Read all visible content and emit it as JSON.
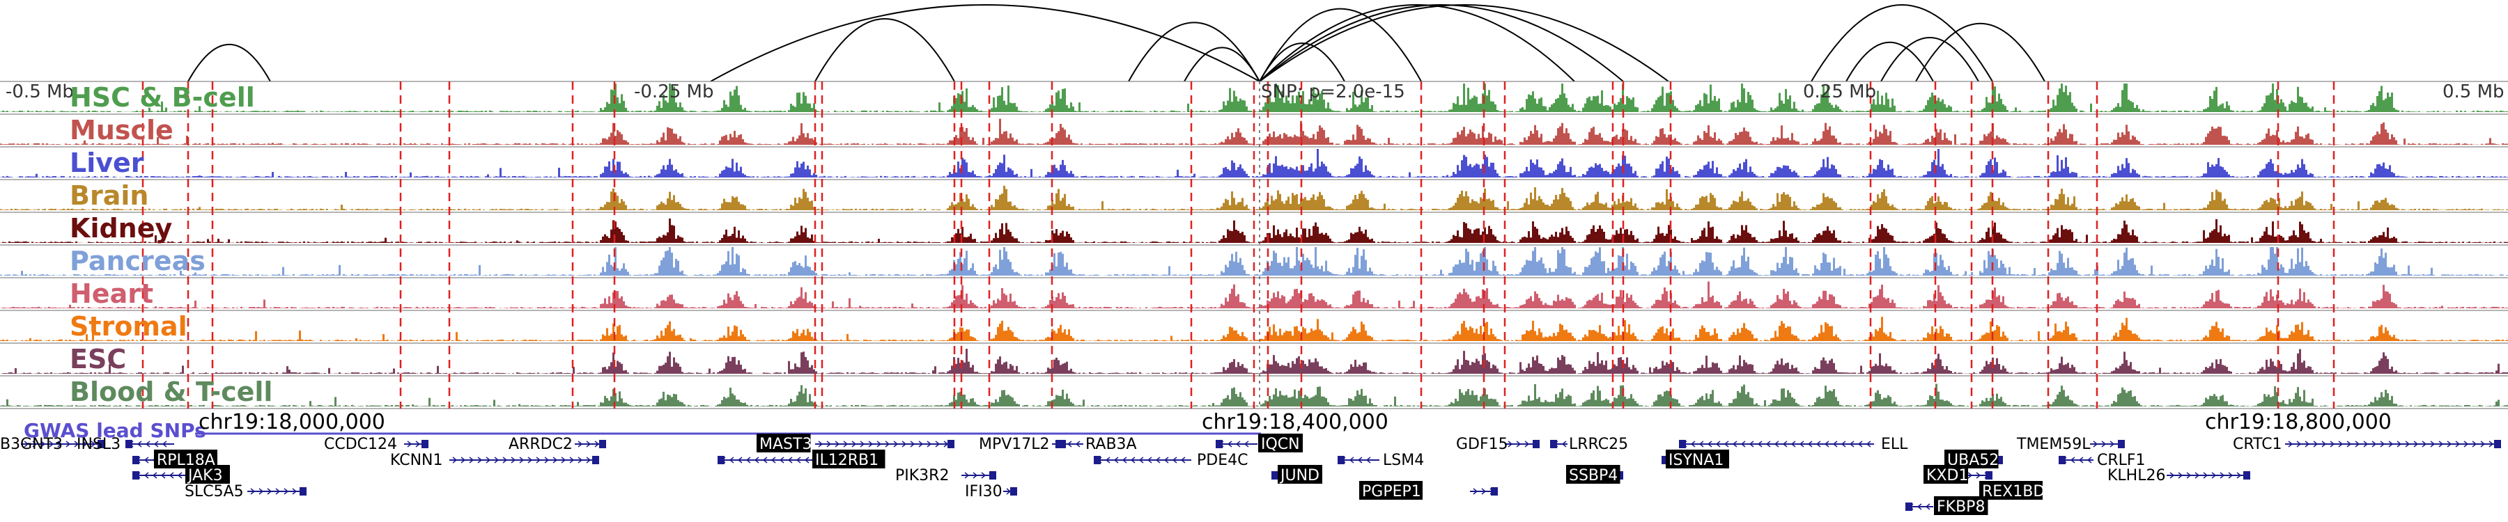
{
  "chart_data": {
    "type": "genome-browser",
    "scale_labels": [
      "-0.5 Mb",
      "-0.25 Mb",
      "SNP: p=2.0e-15",
      "0.25 Mb",
      "0.5 Mb"
    ],
    "coordinate_labels": [
      "chr19:18,000,000",
      "chr19:18,400,000",
      "chr19:18,800,000"
    ],
    "gwas_label": "GWAS lead SNPs",
    "tracks": [
      {
        "name": "HSC & B-cell",
        "color": "#4f9d4f"
      },
      {
        "name": "Muscle",
        "color": "#c1534f"
      },
      {
        "name": "Liver",
        "color": "#4b4fd1"
      },
      {
        "name": "Brain",
        "color": "#b8882a"
      },
      {
        "name": "Kidney",
        "color": "#6b0e0e"
      },
      {
        "name": "Pancreas",
        "color": "#7fa0d8"
      },
      {
        "name": "Heart",
        "color": "#cf5e6e"
      },
      {
        "name": "Stromal",
        "color": "#ef7a12"
      },
      {
        "name": "ESC",
        "color": "#7a3f5c"
      },
      {
        "name": "Blood & T-cell",
        "color": "#5e8a5e"
      }
    ],
    "genes": [
      {
        "name": "B3GNT3",
        "highlight": false
      },
      {
        "name": "INSL3",
        "highlight": false
      },
      {
        "name": "RPL18A",
        "highlight": true
      },
      {
        "name": "JAK3",
        "highlight": true
      },
      {
        "name": "SLC5A5",
        "highlight": false
      },
      {
        "name": "CCDC124",
        "highlight": false
      },
      {
        "name": "KCNN1",
        "highlight": false
      },
      {
        "name": "ARRDC2",
        "highlight": false
      },
      {
        "name": "MAST3",
        "highlight": true
      },
      {
        "name": "IL12RB1",
        "highlight": true
      },
      {
        "name": "PIK3R2",
        "highlight": false
      },
      {
        "name": "IFI30",
        "highlight": false
      },
      {
        "name": "MPV17L2",
        "highlight": false
      },
      {
        "name": "RAB3A",
        "highlight": false
      },
      {
        "name": "PDE4C",
        "highlight": false
      },
      {
        "name": "IQCN",
        "highlight": true
      },
      {
        "name": "JUND",
        "highlight": true
      },
      {
        "name": "LSM4",
        "highlight": false
      },
      {
        "name": "PGPEP1",
        "highlight": true
      },
      {
        "name": "GDF15",
        "highlight": false
      },
      {
        "name": "LRRC25",
        "highlight": false
      },
      {
        "name": "SSBP4",
        "highlight": true
      },
      {
        "name": "ISYNA1",
        "highlight": true
      },
      {
        "name": "ELL",
        "highlight": false
      },
      {
        "name": "UBA52",
        "highlight": true
      },
      {
        "name": "KXD1",
        "highlight": true
      },
      {
        "name": "REX1BD",
        "highlight": true
      },
      {
        "name": "FKBP8",
        "highlight": true
      },
      {
        "name": "TMEM59L",
        "highlight": false
      },
      {
        "name": "CRLF1",
        "highlight": false
      },
      {
        "name": "KLHL26",
        "highlight": false
      },
      {
        "name": "CRTC1",
        "highlight": false
      }
    ]
  }
}
